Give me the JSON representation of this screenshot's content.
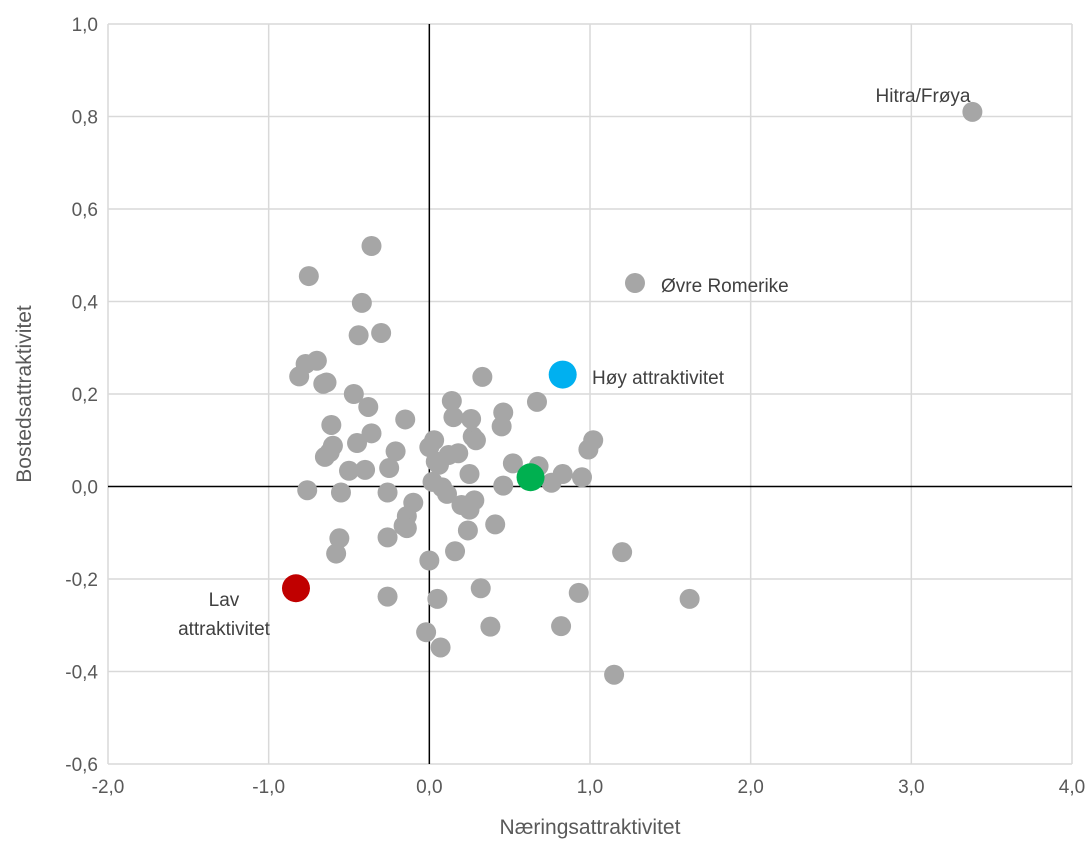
{
  "chart_data": {
    "type": "scatter",
    "xlabel": "Næringsattraktivitet",
    "ylabel": "Bostedsattraktivitet",
    "xlim": [
      -2.0,
      4.0
    ],
    "ylim": [
      -0.6,
      1.0
    ],
    "x_ticks": [
      "-2,0",
      "-1,0",
      "0,0",
      "1,0",
      "2,0",
      "3,0",
      "4,0"
    ],
    "y_ticks": [
      "1,0",
      "0,8",
      "0,6",
      "0,4",
      "0,2",
      "0,0",
      "-0,2",
      "-0,4",
      "-0,6"
    ],
    "grid": true,
    "colors": {
      "points": "#a6a6a6",
      "high": "#00b0f0",
      "low": "#c00000",
      "highlight": "#00b050",
      "grid": "#d9d9d9",
      "axis": "#000000"
    },
    "points": [
      [
        -0.36,
        0.52
      ],
      [
        -0.75,
        0.455
      ],
      [
        -0.42,
        0.397
      ],
      [
        -0.44,
        0.327
      ],
      [
        -0.3,
        0.332
      ],
      [
        -0.7,
        0.272
      ],
      [
        -0.77,
        0.265
      ],
      [
        -0.81,
        0.238
      ],
      [
        -0.64,
        0.225
      ],
      [
        -0.66,
        0.222
      ],
      [
        -0.47,
        0.2
      ],
      [
        -0.38,
        0.172
      ],
      [
        -0.15,
        0.145
      ],
      [
        -0.61,
        0.133
      ],
      [
        -0.36,
        0.115
      ],
      [
        -0.45,
        0.094
      ],
      [
        -0.6,
        0.088
      ],
      [
        -0.62,
        0.074
      ],
      [
        -0.65,
        0.064
      ],
      [
        -0.21,
        0.076
      ],
      [
        -0.25,
        0.04
      ],
      [
        -0.4,
        0.036
      ],
      [
        -0.5,
        0.034
      ],
      [
        -0.76,
        -0.008
      ],
      [
        -0.55,
        -0.013
      ],
      [
        -0.26,
        -0.013
      ],
      [
        -0.1,
        -0.035
      ],
      [
        -0.14,
        -0.064
      ],
      [
        -0.16,
        -0.085
      ],
      [
        -0.14,
        -0.09
      ],
      [
        -0.56,
        -0.112
      ],
      [
        -0.58,
        -0.145
      ],
      [
        -0.26,
        -0.11
      ],
      [
        0.0,
        -0.16
      ],
      [
        -0.26,
        -0.238
      ],
      [
        0.05,
        -0.243
      ],
      [
        -0.02,
        -0.315
      ],
      [
        0.07,
        -0.348
      ],
      [
        0.03,
        0.1
      ],
      [
        0.0,
        0.085
      ],
      [
        0.14,
        0.185
      ],
      [
        0.15,
        0.15
      ],
      [
        0.26,
        0.146
      ],
      [
        0.27,
        0.108
      ],
      [
        0.29,
        0.1
      ],
      [
        0.33,
        0.237
      ],
      [
        0.45,
        0.13
      ],
      [
        0.46,
        0.16
      ],
      [
        0.67,
        0.183
      ],
      [
        0.04,
        0.054
      ],
      [
        0.12,
        0.068
      ],
      [
        0.18,
        0.072
      ],
      [
        0.06,
        0.047
      ],
      [
        0.02,
        0.01
      ],
      [
        0.08,
        -0.002
      ],
      [
        0.11,
        -0.016
      ],
      [
        0.2,
        -0.04
      ],
      [
        0.25,
        0.027
      ],
      [
        0.28,
        -0.03
      ],
      [
        0.25,
        -0.05
      ],
      [
        0.24,
        -0.095
      ],
      [
        0.16,
        -0.14
      ],
      [
        0.41,
        -0.082
      ],
      [
        0.32,
        -0.22
      ],
      [
        0.38,
        -0.303
      ],
      [
        0.46,
        0.002
      ],
      [
        0.52,
        0.05
      ],
      [
        0.68,
        0.044
      ],
      [
        0.76,
        0.008
      ],
      [
        0.83,
        0.027
      ],
      [
        0.95,
        0.02
      ],
      [
        0.99,
        0.08
      ],
      [
        1.02,
        0.1
      ],
      [
        0.82,
        -0.302
      ],
      [
        0.93,
        -0.23
      ],
      [
        1.2,
        -0.142
      ],
      [
        1.15,
        -0.407
      ],
      [
        1.62,
        -0.243
      ],
      [
        1.28,
        0.44
      ],
      [
        3.38,
        0.81
      ]
    ],
    "highlights": [
      {
        "name": "high",
        "x": 0.83,
        "y": 0.242,
        "color": "#00b0f0"
      },
      {
        "name": "low",
        "x": -0.83,
        "y": -0.22,
        "color": "#c00000"
      },
      {
        "name": "middle",
        "x": 0.63,
        "y": 0.02,
        "color": "#00b050"
      }
    ],
    "annotations": {
      "hitra": "Hitra/Frøya",
      "ovre": "Øvre Romerike",
      "hoy": "Høy attraktivitet",
      "lav_1": "Lav",
      "lav_2": "attraktivitet"
    }
  }
}
